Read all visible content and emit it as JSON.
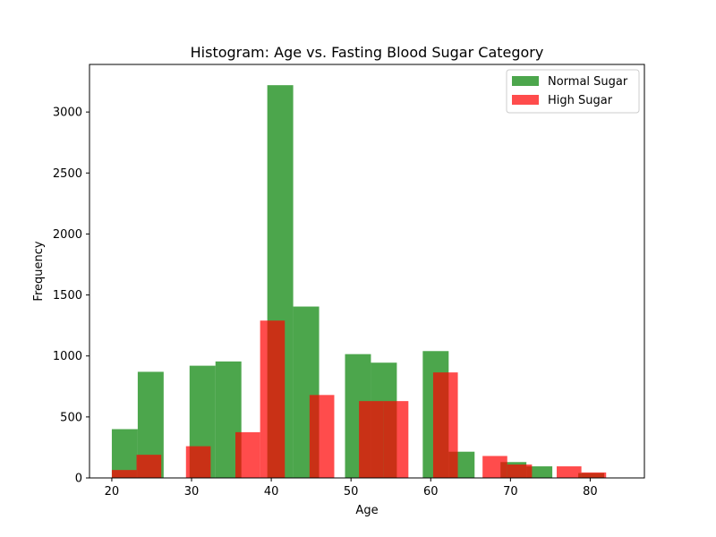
{
  "chart_data": {
    "type": "bar",
    "title": "Histogram: Age vs. Fasting Blood Sugar Category",
    "xlabel": "Age",
    "ylabel": "Frequency",
    "xlim": [
      17.2,
      86.8
    ],
    "ylim": [
      0,
      3390
    ],
    "x_ticks": [
      20,
      30,
      40,
      50,
      60,
      70,
      80
    ],
    "y_ticks": [
      0,
      500,
      1000,
      1500,
      2000,
      2500,
      3000
    ],
    "grid": false,
    "legend_position": "top-right",
    "series": [
      {
        "name": "Normal Sugar",
        "color": "#008000",
        "opacity": 0.7,
        "bins": [
          {
            "x0": 20.0,
            "x1": 23.25,
            "value": 400
          },
          {
            "x0": 23.25,
            "x1": 26.5,
            "value": 870
          },
          {
            "x0": 26.5,
            "x1": 29.75,
            "value": 0
          },
          {
            "x0": 29.75,
            "x1": 33.0,
            "value": 920
          },
          {
            "x0": 33.0,
            "x1": 36.25,
            "value": 955
          },
          {
            "x0": 36.25,
            "x1": 39.5,
            "value": 0
          },
          {
            "x0": 39.5,
            "x1": 42.75,
            "value": 3220
          },
          {
            "x0": 42.75,
            "x1": 46.0,
            "value": 1405
          },
          {
            "x0": 46.0,
            "x1": 49.25,
            "value": 0
          },
          {
            "x0": 49.25,
            "x1": 52.5,
            "value": 1015
          },
          {
            "x0": 52.5,
            "x1": 55.75,
            "value": 945
          },
          {
            "x0": 55.75,
            "x1": 59.0,
            "value": 0
          },
          {
            "x0": 59.0,
            "x1": 62.25,
            "value": 1040
          },
          {
            "x0": 62.25,
            "x1": 65.5,
            "value": 215
          },
          {
            "x0": 65.5,
            "x1": 68.75,
            "value": 0
          },
          {
            "x0": 68.75,
            "x1": 72.0,
            "value": 130
          },
          {
            "x0": 72.0,
            "x1": 75.25,
            "value": 95
          },
          {
            "x0": 75.25,
            "x1": 78.5,
            "value": 0
          },
          {
            "x0": 78.5,
            "x1": 81.75,
            "value": 40
          }
        ]
      },
      {
        "name": "High Sugar",
        "color": "#ff0000",
        "opacity": 0.7,
        "bins": [
          {
            "x0": 20.0,
            "x1": 23.1,
            "value": 65
          },
          {
            "x0": 23.1,
            "x1": 26.2,
            "value": 190
          },
          {
            "x0": 26.2,
            "x1": 29.3,
            "value": 0
          },
          {
            "x0": 29.3,
            "x1": 32.4,
            "value": 260
          },
          {
            "x0": 32.4,
            "x1": 35.5,
            "value": 0
          },
          {
            "x0": 35.5,
            "x1": 38.6,
            "value": 375
          },
          {
            "x0": 38.6,
            "x1": 41.7,
            "value": 1290
          },
          {
            "x0": 41.7,
            "x1": 44.8,
            "value": 0
          },
          {
            "x0": 44.8,
            "x1": 47.9,
            "value": 680
          },
          {
            "x0": 47.9,
            "x1": 51.0,
            "value": 0
          },
          {
            "x0": 51.0,
            "x1": 54.1,
            "value": 630
          },
          {
            "x0": 54.1,
            "x1": 57.2,
            "value": 630
          },
          {
            "x0": 57.2,
            "x1": 60.3,
            "value": 0
          },
          {
            "x0": 60.3,
            "x1": 63.4,
            "value": 865
          },
          {
            "x0": 63.4,
            "x1": 66.5,
            "value": 0
          },
          {
            "x0": 66.5,
            "x1": 69.6,
            "value": 180
          },
          {
            "x0": 69.6,
            "x1": 72.7,
            "value": 110
          },
          {
            "x0": 72.7,
            "x1": 75.8,
            "value": 0
          },
          {
            "x0": 75.8,
            "x1": 78.9,
            "value": 95
          },
          {
            "x0": 78.9,
            "x1": 82.0,
            "value": 45
          }
        ]
      }
    ]
  }
}
